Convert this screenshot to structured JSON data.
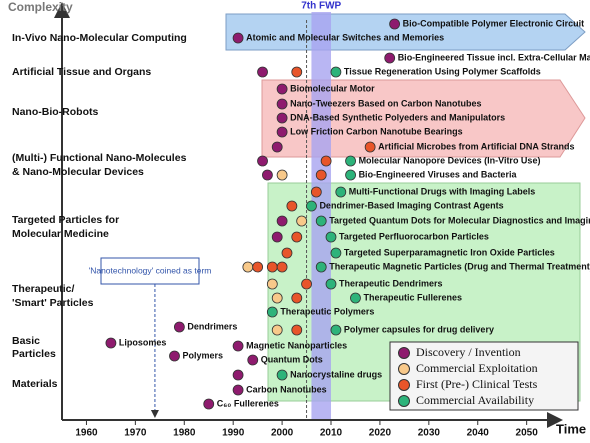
{
  "chart_data": {
    "type": "roadmap",
    "y_title": "Complexity",
    "x_title": "Time",
    "xlim": [
      1955,
      2056
    ],
    "xticks": [
      1960,
      1970,
      1980,
      1990,
      2000,
      2010,
      2020,
      2030,
      2040,
      2050
    ],
    "fwp": {
      "label": "7th FWP",
      "start": 2006,
      "end": 2010
    },
    "reference_year": 2005,
    "annotation": {
      "label": "'Nanotechnology' coined as term",
      "year": 1974
    },
    "phases": [
      {
        "name": "Discovery / Invention",
        "color": "#8e1b6e"
      },
      {
        "name": "Commercial Exploitation",
        "color": "#f8c98a"
      },
      {
        "name": "First (Pre-) Clinical Tests",
        "color": "#e8552a"
      },
      {
        "name": "Commercial Availability",
        "color": "#2db37a"
      }
    ],
    "rows": [
      "In-Vivo Nano-Molecular Computing",
      "Artificial Tissue and Organs",
      "Nano-Bio-Robots",
      "(Multi-) Functional Nano-Molecules",
      "& Nano-Molecular Devices",
      "Targeted Particles for",
      "Molecular Medicine",
      "Therapeutic/",
      "'Smart' Particles",
      "Basic",
      "Particles",
      "Materials"
    ],
    "items": [
      {
        "label": "Bio-Compatible Polymer Electronic Circuit",
        "points": [
          {
            "year": 2023,
            "phase": 0
          }
        ]
      },
      {
        "label": "Atomic and Molecular Switches and Memories",
        "points": [
          {
            "year": 1991,
            "phase": 0
          }
        ]
      },
      {
        "label": "Bio-Engineered Tissue incl. Extra-Cellular Matrix",
        "points": [
          {
            "year": 2022,
            "phase": 0
          }
        ]
      },
      {
        "label": "Tissue Regeneration Using Polymer Scaffolds",
        "points": [
          {
            "year": 1996,
            "phase": 0
          },
          {
            "year": 2003,
            "phase": 2
          },
          {
            "year": 2011,
            "phase": 3
          }
        ]
      },
      {
        "label": "Biomolecular Motor",
        "points": [
          {
            "year": 2000,
            "phase": 0
          }
        ]
      },
      {
        "label": "Nano-Tweezers Based on Carbon Nanotubes",
        "points": [
          {
            "year": 2000,
            "phase": 0
          }
        ]
      },
      {
        "label": "DNA-Based Synthetic Polyeders and Manipulators",
        "points": [
          {
            "year": 2000,
            "phase": 0
          }
        ]
      },
      {
        "label": "Low Friction Carbon Nanotube Bearings",
        "points": [
          {
            "year": 2000,
            "phase": 0
          }
        ]
      },
      {
        "label": "Artificial Microbes from Artificial DNA Strands",
        "points": [
          {
            "year": 1999,
            "phase": 0
          },
          {
            "year": 2018,
            "phase": 2
          }
        ]
      },
      {
        "label": "Molecular Nanopore Devices (In-Vitro Use)",
        "points": [
          {
            "year": 1996,
            "phase": 0
          },
          {
            "year": 2009,
            "phase": 2
          },
          {
            "year": 2014,
            "phase": 3
          }
        ]
      },
      {
        "label": "Bio-Engineered Viruses and Bacteria",
        "points": [
          {
            "year": 1997,
            "phase": 0
          },
          {
            "year": 2000,
            "phase": 1
          },
          {
            "year": 2008,
            "phase": 2
          },
          {
            "year": 2014,
            "phase": 3
          }
        ]
      },
      {
        "label": "Multi-Functional Drugs with Imaging Labels",
        "points": [
          {
            "year": 2007,
            "phase": 2
          },
          {
            "year": 2012,
            "phase": 3
          }
        ]
      },
      {
        "label": "Dendrimer-Based Imaging Contrast Agents",
        "points": [
          {
            "year": 2002,
            "phase": 2
          },
          {
            "year": 2006,
            "phase": 3
          }
        ]
      },
      {
        "label": "Targeted Quantum Dots for Molecular Diagnostics and Imaging",
        "points": [
          {
            "year": 2000,
            "phase": 0
          },
          {
            "year": 2004,
            "phase": 1
          },
          {
            "year": 2008,
            "phase": 3
          }
        ]
      },
      {
        "label": "Targeted Perfluorocarbon Particles",
        "points": [
          {
            "year": 1999,
            "phase": 0
          },
          {
            "year": 2003,
            "phase": 2
          },
          {
            "year": 2010,
            "phase": 3
          }
        ]
      },
      {
        "label": "Targeted Superparamagnetic Iron Oxide Particles",
        "points": [
          {
            "year": 2001,
            "phase": 2
          },
          {
            "year": 2011,
            "phase": 3
          }
        ]
      },
      {
        "label": "Therapeutic Magnetic Particles (Drug and Thermal Treatment)",
        "points": [
          {
            "year": 1993,
            "phase": 1
          },
          {
            "year": 1995,
            "phase": 2
          },
          {
            "year": 1998,
            "phase": 2
          },
          {
            "year": 2000,
            "phase": 2
          },
          {
            "year": 2008,
            "phase": 3
          }
        ]
      },
      {
        "label": "Therapeutic Dendrimers",
        "points": [
          {
            "year": 1998,
            "phase": 1
          },
          {
            "year": 2005,
            "phase": 2
          },
          {
            "year": 2010,
            "phase": 3
          }
        ]
      },
      {
        "label": "Therapeutic Fullerenes",
        "points": [
          {
            "year": 1999,
            "phase": 1
          },
          {
            "year": 2003,
            "phase": 2
          },
          {
            "year": 2015,
            "phase": 3
          }
        ]
      },
      {
        "label": "Therapeutic Polymers",
        "points": [
          {
            "year": 1998,
            "phase": 3
          }
        ]
      },
      {
        "label": "Polymer capsules for drug delivery",
        "points": [
          {
            "year": 1999,
            "phase": 1
          },
          {
            "year": 2003,
            "phase": 2
          },
          {
            "year": 2011,
            "phase": 3
          }
        ]
      },
      {
        "label": "Dendrimers",
        "points": [
          {
            "year": 1979,
            "phase": 0
          }
        ]
      },
      {
        "label": "Liposomes",
        "points": [
          {
            "year": 1965,
            "phase": 0
          }
        ]
      },
      {
        "label": "Magnetic Nanoparticles",
        "points": [
          {
            "year": 1991,
            "phase": 0
          }
        ]
      },
      {
        "label": "Polymers",
        "points": [
          {
            "year": 1978,
            "phase": 0
          }
        ]
      },
      {
        "label": "Quantum Dots",
        "points": [
          {
            "year": 1994,
            "phase": 0
          }
        ]
      },
      {
        "label": "Nanocrystaline drugs",
        "points": [
          {
            "year": 1991,
            "phase": 0
          },
          {
            "year": 2000,
            "phase": 3
          }
        ]
      },
      {
        "label": "Carbon Nanotubes",
        "points": [
          {
            "year": 1991,
            "phase": 0
          }
        ]
      },
      {
        "label": "C₆₀ Fullerenes",
        "points": [
          {
            "year": 1985,
            "phase": 0
          }
        ]
      }
    ]
  }
}
